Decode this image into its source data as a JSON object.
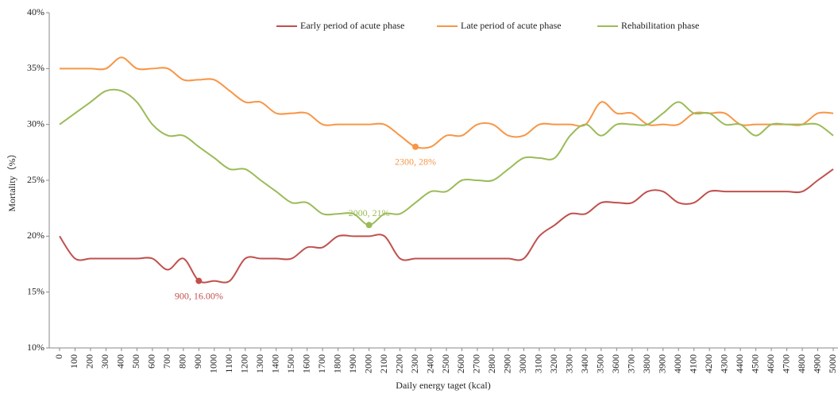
{
  "chart_data": {
    "type": "line",
    "xlabel": "Daily energy taget (kcal)",
    "ylabel": "Mortality（%）",
    "x": [
      0,
      100,
      200,
      300,
      400,
      500,
      600,
      700,
      800,
      900,
      1000,
      1100,
      1200,
      1300,
      1400,
      1500,
      1600,
      1700,
      1800,
      1900,
      2000,
      2100,
      2200,
      2300,
      2400,
      2500,
      2600,
      2700,
      2800,
      2900,
      3000,
      3100,
      3200,
      3300,
      3400,
      3500,
      3600,
      3700,
      3800,
      3900,
      4000,
      4100,
      4200,
      4300,
      4400,
      4500,
      4600,
      4700,
      4800,
      4900,
      5000
    ],
    "xlim": [
      0,
      5000
    ],
    "xticks": [
      0,
      100,
      200,
      300,
      400,
      500,
      600,
      700,
      800,
      900,
      1000,
      1100,
      1200,
      1300,
      1400,
      1500,
      1600,
      1700,
      1800,
      1900,
      2000,
      2100,
      2200,
      2300,
      2400,
      2500,
      2600,
      2700,
      2800,
      2900,
      3000,
      3100,
      3200,
      3300,
      3400,
      3500,
      3600,
      3700,
      3800,
      3900,
      4000,
      4100,
      4200,
      4300,
      4400,
      4500,
      4600,
      4700,
      4800,
      4900,
      5000
    ],
    "ylim": [
      10,
      40
    ],
    "yticks": [
      {
        "value": 10,
        "label": "10%"
      },
      {
        "value": 15,
        "label": "15%"
      },
      {
        "value": 20,
        "label": "20%"
      },
      {
        "value": 25,
        "label": "25%"
      },
      {
        "value": 30,
        "label": "30%"
      },
      {
        "value": 35,
        "label": "35%"
      },
      {
        "value": 40,
        "label": "40%"
      }
    ],
    "legend": "top",
    "series": [
      {
        "name": "Early period of acute phase",
        "color": "#c0504d",
        "values": [
          20,
          18,
          18,
          18,
          18,
          18,
          18,
          17,
          18,
          16,
          16,
          16,
          18,
          18,
          18,
          18,
          19,
          19,
          20,
          20,
          20,
          20,
          18,
          18,
          18,
          18,
          18,
          18,
          18,
          18,
          18,
          20,
          21,
          22,
          22,
          23,
          23,
          23,
          24,
          24,
          23,
          23,
          24,
          24,
          24,
          24,
          24,
          24,
          24,
          25,
          26
        ]
      },
      {
        "name": "Late period of acute phase",
        "color": "#f79646",
        "values": [
          35,
          35,
          35,
          35,
          36,
          35,
          35,
          35,
          34,
          34,
          34,
          33,
          32,
          32,
          31,
          31,
          31,
          30,
          30,
          30,
          30,
          30,
          29,
          28,
          28,
          29,
          29,
          30,
          30,
          29,
          29,
          30,
          30,
          30,
          30,
          32,
          31,
          31,
          30,
          30,
          30,
          31,
          31,
          31,
          30,
          30,
          30,
          30,
          30,
          31,
          31
        ]
      },
      {
        "name": "Rehabilitation phase",
        "color": "#9bbb59",
        "values": [
          30,
          31,
          32,
          33,
          33,
          32,
          30,
          29,
          29,
          28,
          27,
          26,
          26,
          25,
          24,
          23,
          23,
          22,
          22,
          22,
          21,
          22,
          22,
          23,
          24,
          24,
          25,
          25,
          25,
          26,
          27,
          27,
          27,
          29,
          30,
          29,
          30,
          30,
          30,
          31,
          32,
          31,
          31,
          30,
          30,
          29,
          30,
          30,
          30,
          30,
          29
        ]
      }
    ],
    "annotations": [
      {
        "x": 900,
        "y": 16,
        "label": "900, 16.00%",
        "series": 0,
        "position": "below"
      },
      {
        "x": 2300,
        "y": 28,
        "label": "2300, 28%",
        "series": 1,
        "position": "below"
      },
      {
        "x": 2000,
        "y": 21,
        "label": "2000, 21%",
        "series": 2,
        "position": "above"
      }
    ]
  }
}
